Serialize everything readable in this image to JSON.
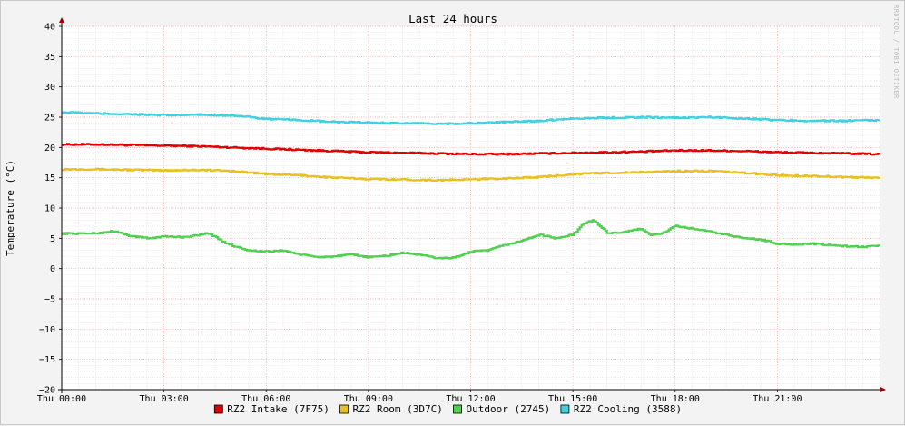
{
  "chart_data": {
    "type": "line",
    "title": "Last 24 hours",
    "ylabel": "Temperature (°C)",
    "xlabel": "",
    "watermark": "RRDTOOL / TOBI OETIKER",
    "ylim": [
      -20,
      40
    ],
    "yticks": [
      40,
      35,
      30,
      25,
      20,
      15,
      10,
      5,
      0,
      -5,
      -10,
      -15,
      -20
    ],
    "xlim": [
      0,
      24
    ],
    "xticks": [
      {
        "x": 0,
        "label": "Thu 00:00"
      },
      {
        "x": 3,
        "label": "Thu 03:00"
      },
      {
        "x": 6,
        "label": "Thu 06:00"
      },
      {
        "x": 9,
        "label": "Thu 09:00"
      },
      {
        "x": 12,
        "label": "Thu 12:00"
      },
      {
        "x": 15,
        "label": "Thu 15:00"
      },
      {
        "x": 18,
        "label": "Thu 18:00"
      },
      {
        "x": 21,
        "label": "Thu 21:00"
      }
    ],
    "grid": true,
    "legend_position": "bottom",
    "series": [
      {
        "name": "RZ2 Intake (7F75)",
        "color": "#e00000",
        "x": [
          0,
          1,
          2,
          3,
          4,
          5,
          6,
          7,
          8,
          9,
          10,
          11,
          12,
          13,
          14,
          15,
          16,
          17,
          18,
          19,
          20,
          21,
          22,
          23,
          24
        ],
        "y": [
          20.5,
          20.5,
          20.4,
          20.3,
          20.2,
          20.0,
          19.8,
          19.6,
          19.4,
          19.2,
          19.1,
          19.0,
          18.9,
          18.9,
          19.0,
          19.1,
          19.2,
          19.3,
          19.5,
          19.5,
          19.4,
          19.2,
          19.1,
          19.0,
          18.9
        ]
      },
      {
        "name": "RZ2 Room (3D7C)",
        "color": "#e8c020",
        "x": [
          0,
          1,
          2,
          3,
          4,
          5,
          6,
          7,
          8,
          9,
          10,
          11,
          12,
          13,
          14,
          15,
          16,
          17,
          18,
          19,
          20,
          21,
          22,
          23,
          24
        ],
        "y": [
          16.4,
          16.4,
          16.3,
          16.2,
          16.3,
          16.1,
          15.6,
          15.4,
          15.0,
          14.8,
          14.7,
          14.6,
          14.7,
          14.9,
          15.1,
          15.6,
          15.8,
          15.9,
          16.1,
          16.1,
          15.8,
          15.4,
          15.3,
          15.1,
          15.0
        ]
      },
      {
        "name": "Outdoor (2745)",
        "color": "#50d050",
        "x": [
          0,
          1,
          1.5,
          2,
          2.5,
          3,
          3.5,
          4,
          4.3,
          4.7,
          5,
          5.5,
          6,
          6.5,
          7,
          7.5,
          8,
          8.5,
          9,
          9.5,
          10,
          10.5,
          11,
          11.5,
          12,
          12.5,
          13,
          13.5,
          14,
          14.5,
          15,
          15.3,
          15.6,
          16,
          16.5,
          17,
          17.3,
          17.6,
          18,
          18.5,
          19,
          19.5,
          20,
          20.5,
          21,
          21.5,
          22,
          22.5,
          23,
          23.5,
          24
        ],
        "y": [
          5.8,
          5.8,
          6.2,
          5.4,
          5.0,
          5.3,
          5.2,
          5.5,
          5.9,
          4.5,
          3.8,
          3.0,
          2.8,
          3.0,
          2.3,
          1.9,
          2.0,
          2.3,
          1.9,
          2.1,
          2.6,
          2.3,
          1.7,
          1.8,
          2.8,
          3.0,
          3.9,
          4.6,
          5.6,
          5.0,
          5.6,
          7.4,
          8.0,
          5.9,
          6.0,
          6.6,
          5.5,
          5.8,
          7.0,
          6.6,
          6.1,
          5.6,
          5.0,
          4.8,
          4.1,
          4.0,
          4.1,
          3.9,
          3.7,
          3.6,
          3.7
        ]
      },
      {
        "name": "RZ2 Cooling (3588)",
        "color": "#40d0e0",
        "x": [
          0,
          1,
          2,
          3,
          4,
          5,
          6,
          7,
          8,
          9,
          10,
          11,
          12,
          13,
          14,
          15,
          16,
          17,
          18,
          19,
          20,
          21,
          22,
          23,
          24
        ],
        "y": [
          25.8,
          25.6,
          25.5,
          25.3,
          25.4,
          25.3,
          24.7,
          24.5,
          24.2,
          24.1,
          24.0,
          23.9,
          24.0,
          24.2,
          24.4,
          24.8,
          24.9,
          25.0,
          24.9,
          25.0,
          24.8,
          24.5,
          24.4,
          24.4,
          24.5
        ]
      }
    ]
  }
}
